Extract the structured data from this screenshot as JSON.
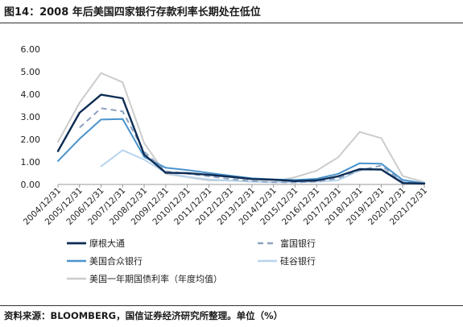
{
  "title": "图14：2008 年后美国四家银行存款利率长期处在低位",
  "source": "资料来源：BLOOMBERG，国信证券经济研究所整理。单位（%）",
  "chart_data": {
    "type": "line",
    "x": [
      "2004/12/31",
      "2005/12/31",
      "2006/12/31",
      "2007/12/31",
      "2008/12/31",
      "2009/12/31",
      "2010/12/31",
      "2011/12/31",
      "2012/12/31",
      "2013/12/31",
      "2014/12/31",
      "2015/12/31",
      "2016/12/31",
      "2017/12/31",
      "2018/12/31",
      "2019/12/31",
      "2020/12/31",
      "2021/12/31"
    ],
    "ylim": [
      0,
      6
    ],
    "yticks": [
      "0.00",
      "1.00",
      "2.00",
      "3.00",
      "4.00",
      "5.00",
      "6.00"
    ],
    "legend_position": "bottom",
    "series": [
      {
        "name": "摩根大通",
        "color": "#0d2c54",
        "dash": false,
        "width": 2.4,
        "values": [
          1.48,
          3.18,
          3.98,
          3.82,
          1.32,
          0.52,
          0.5,
          0.43,
          0.34,
          0.24,
          0.21,
          0.15,
          0.18,
          0.36,
          0.68,
          0.66,
          0.06,
          0.04
        ]
      },
      {
        "name": "富国银行",
        "color": "#8da2bf",
        "dash": true,
        "width": 2.0,
        "values": [
          null,
          2.52,
          3.38,
          3.24,
          1.45,
          0.58,
          0.48,
          0.36,
          0.24,
          0.15,
          0.1,
          0.09,
          0.13,
          0.27,
          0.62,
          0.84,
          0.1,
          0.03
        ]
      },
      {
        "name": "美国合众银行",
        "color": "#4a93cc",
        "dash": false,
        "width": 2.0,
        "values": [
          1.04,
          2.02,
          2.88,
          2.9,
          1.22,
          0.74,
          0.64,
          0.51,
          0.39,
          0.27,
          0.22,
          0.2,
          0.25,
          0.47,
          0.94,
          0.92,
          0.2,
          0.05
        ]
      },
      {
        "name": "硅谷银行",
        "color": "#b8d4ee",
        "dash": false,
        "width": 2.0,
        "values": [
          null,
          null,
          0.8,
          1.52,
          1.1,
          0.52,
          0.34,
          0.22,
          0.17,
          0.12,
          0.1,
          0.1,
          0.12,
          0.18,
          0.63,
          0.68,
          0.13,
          0.08
        ]
      },
      {
        "name": "美国一年期国债利率（年度均值）",
        "color": "#cccccc",
        "dash": false,
        "width": 2.0,
        "values": [
          1.89,
          3.62,
          4.94,
          4.53,
          1.83,
          0.47,
          0.32,
          0.18,
          0.17,
          0.13,
          0.12,
          0.32,
          0.61,
          1.2,
          2.33,
          2.05,
          0.37,
          0.1
        ]
      }
    ]
  }
}
